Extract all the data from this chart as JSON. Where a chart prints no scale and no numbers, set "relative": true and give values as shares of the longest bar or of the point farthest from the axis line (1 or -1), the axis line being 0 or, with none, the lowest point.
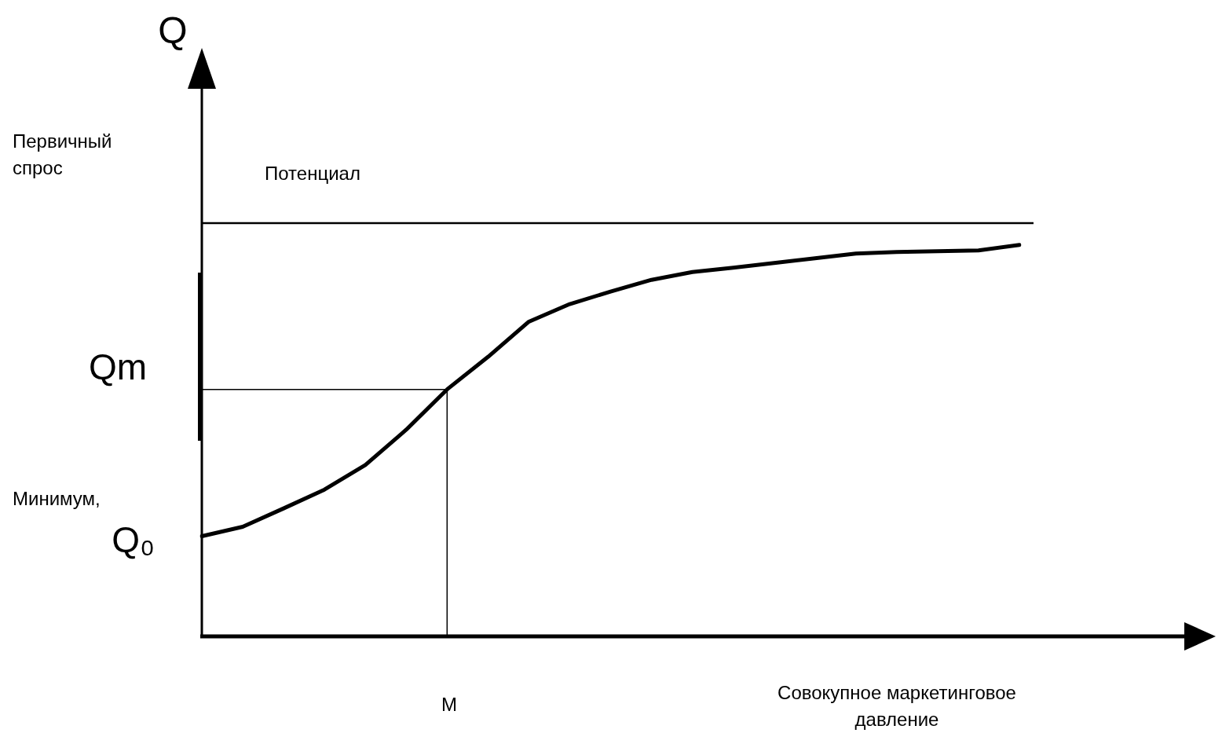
{
  "chart_data": {
    "type": "line",
    "relative": true,
    "xlabel": "Совокупное маркетинговое давление",
    "legend": false,
    "marker": "none",
    "categories": [
      null,
      null,
      null,
      null,
      null,
      null,
      null,
      null,
      null,
      null,
      null,
      null,
      null,
      null,
      null,
      null,
      null,
      null,
      null,
      null,
      null
    ],
    "series": [
      {
        "color": "#000000",
        "values": [
          0.256,
          0.28,
          0.327,
          0.375,
          0.438,
          0.528,
          0.631,
          0.714,
          0.804,
          0.849,
          0.881,
          0.911,
          0.931,
          0.942,
          0.954,
          0.966,
          0.978,
          0.982,
          0.984,
          0.986,
          1.0
        ]
      }
    ],
    "ref_lines": [
      {
        "axis": "y",
        "value": 1.056,
        "label": "Потенциал",
        "color": "#000000"
      },
      {
        "axis": "y",
        "value": 0.631,
        "color": "#000000"
      }
    ],
    "annotations": [
      "Первичный спрос",
      "Минимум,",
      "Qm",
      "Q₀",
      "M",
      "Q"
    ]
  }
}
